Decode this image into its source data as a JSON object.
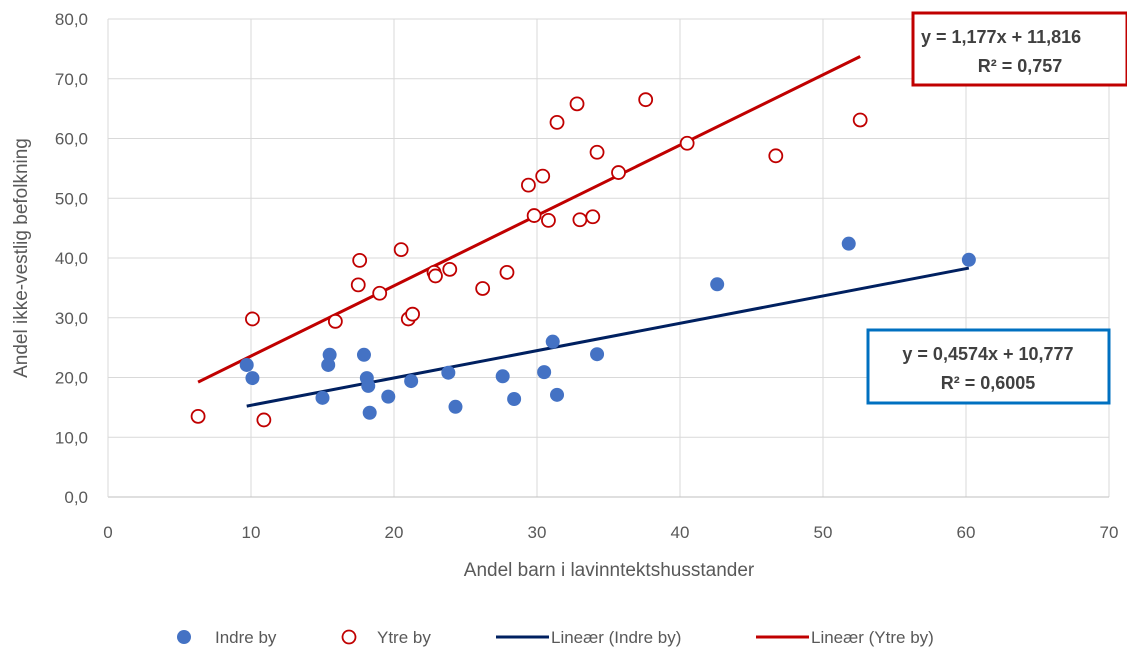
{
  "chart_data": {
    "type": "scatter",
    "xlabel": "Andel barn i lavinntektshusstander",
    "ylabel": "Andel ikke-vestlig befolkning",
    "xlim": [
      0,
      70
    ],
    "ylim": [
      0,
      80
    ],
    "x_ticks": [
      "0",
      "10",
      "20",
      "30",
      "40",
      "50",
      "60",
      "70"
    ],
    "y_ticks": [
      "0,0",
      "10,0",
      "20,0",
      "30,0",
      "40,0",
      "50,0",
      "60,0",
      "70,0",
      "80,0"
    ],
    "grid": true,
    "legend_position": "bottom",
    "series": [
      {
        "name": "Indre by",
        "marker": "filled-circle",
        "color": "#4472C4",
        "points": [
          [
            9.7,
            22.1
          ],
          [
            10.1,
            19.9
          ],
          [
            15.0,
            16.6
          ],
          [
            15.4,
            22.1
          ],
          [
            15.5,
            23.8
          ],
          [
            17.9,
            23.8
          ],
          [
            18.1,
            19.9
          ],
          [
            18.2,
            18.6
          ],
          [
            18.3,
            14.1
          ],
          [
            19.6,
            16.8
          ],
          [
            21.2,
            19.4
          ],
          [
            23.8,
            20.8
          ],
          [
            24.3,
            15.1
          ],
          [
            27.6,
            20.2
          ],
          [
            28.4,
            16.4
          ],
          [
            30.5,
            20.9
          ],
          [
            31.1,
            26.0
          ],
          [
            31.4,
            17.1
          ],
          [
            34.2,
            23.9
          ],
          [
            42.6,
            35.6
          ],
          [
            51.8,
            42.4
          ],
          [
            60.2,
            39.7
          ]
        ]
      },
      {
        "name": "Ytre by",
        "marker": "open-circle",
        "color": "#C00000",
        "points": [
          [
            6.3,
            13.5
          ],
          [
            10.1,
            29.8
          ],
          [
            10.9,
            12.9
          ],
          [
            15.9,
            29.4
          ],
          [
            17.5,
            35.5
          ],
          [
            17.6,
            39.6
          ],
          [
            19.0,
            34.1
          ],
          [
            20.5,
            41.4
          ],
          [
            21.0,
            29.8
          ],
          [
            21.3,
            30.6
          ],
          [
            22.8,
            37.6
          ],
          [
            22.9,
            37.0
          ],
          [
            23.9,
            38.1
          ],
          [
            26.2,
            34.9
          ],
          [
            27.9,
            37.6
          ],
          [
            29.4,
            52.2
          ],
          [
            29.8,
            47.1
          ],
          [
            30.4,
            53.7
          ],
          [
            30.8,
            46.3
          ],
          [
            31.4,
            62.7
          ],
          [
            32.8,
            65.8
          ],
          [
            33.0,
            46.4
          ],
          [
            33.9,
            46.9
          ],
          [
            34.2,
            57.7
          ],
          [
            35.7,
            54.3
          ],
          [
            37.6,
            66.5
          ],
          [
            40.5,
            59.2
          ],
          [
            46.7,
            57.1
          ],
          [
            52.6,
            63.1
          ]
        ]
      }
    ],
    "trendlines": [
      {
        "name": "Lineær (Indre by)",
        "color": "#002060",
        "slope": 0.4574,
        "intercept": 10.777,
        "x_range": [
          9.7,
          60.2
        ],
        "equation": "y = 0,4574x + 10,777",
        "r2": "R² = 0,6005",
        "box_color": "#0070C0"
      },
      {
        "name": "Lineær (Ytre by)",
        "color": "#C00000",
        "slope": 1.177,
        "intercept": 11.816,
        "x_range": [
          6.3,
          52.6
        ],
        "equation": "y = 1,177x + 11,816",
        "r2": "R² = 0,757",
        "box_color": "#C00000"
      }
    ]
  }
}
